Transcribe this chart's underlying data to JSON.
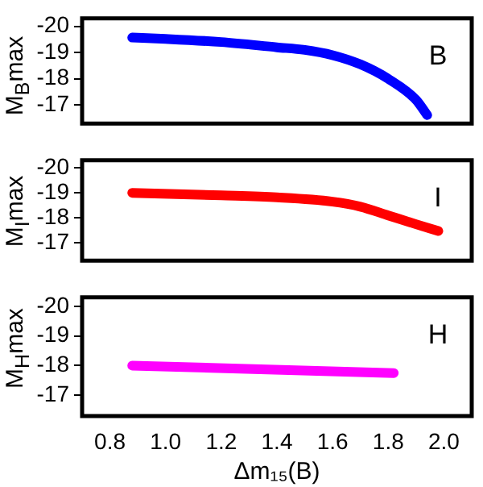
{
  "chart_data": [
    {
      "type": "line",
      "ylabel": "M$_{B}$max",
      "annotations": [
        "B"
      ],
      "x": [
        0.88,
        1.0,
        1.2,
        1.4,
        1.5,
        1.6,
        1.7,
        1.8,
        1.9,
        1.94
      ],
      "series": [
        {
          "color": "#0000ff",
          "values": [
            -19.57,
            -19.52,
            -19.4,
            -19.2,
            -19.1,
            -18.9,
            -18.55,
            -18.0,
            -17.2,
            -16.62
          ]
        }
      ],
      "xlim": [
        0.7,
        2.1
      ],
      "xticks": [
        0.8,
        1.0,
        1.2,
        1.4,
        1.6,
        1.8,
        2.0
      ],
      "ylim": [
        -16.3,
        -20.3
      ],
      "yticks": [
        -20,
        -19,
        -18,
        -17
      ],
      "tick_labels": "y",
      "marker": "none"
    },
    {
      "type": "line",
      "ylabel": "M$_{I}$max",
      "annotations": [
        "I"
      ],
      "x": [
        0.88,
        1.2,
        1.4,
        1.6,
        1.7,
        1.8,
        1.9,
        1.98
      ],
      "series": [
        {
          "color": "#ff0000",
          "values": [
            -19.0,
            -18.9,
            -18.82,
            -18.65,
            -18.45,
            -18.1,
            -17.75,
            -17.48
          ]
        }
      ],
      "xlim": [
        0.7,
        2.1
      ],
      "xticks": [
        0.8,
        1.0,
        1.2,
        1.4,
        1.6,
        1.8,
        2.0
      ],
      "ylim": [
        -16.3,
        -20.3
      ],
      "yticks": [
        -20,
        -19,
        -18,
        -17
      ],
      "tick_labels": "y",
      "marker": "none"
    },
    {
      "type": "line",
      "ylabel": "M$_{H}$max",
      "xlabel": "Δm₁₅(B)",
      "annotations": [
        "H"
      ],
      "x": [
        0.88,
        1.82
      ],
      "series": [
        {
          "color": "#ff00ff",
          "values": [
            -18.0,
            -17.75
          ]
        }
      ],
      "xlim": [
        0.7,
        2.1
      ],
      "xticks": [
        0.8,
        {
          "value": 1,
          "label": "1.0"
        },
        1.2,
        1.4,
        1.6,
        1.8,
        {
          "value": 2,
          "label": "2.0"
        }
      ],
      "ylim": [
        -16.3,
        -20.3
      ],
      "yticks": [
        -20,
        -19,
        -18,
        -17
      ],
      "marker": "none"
    }
  ]
}
